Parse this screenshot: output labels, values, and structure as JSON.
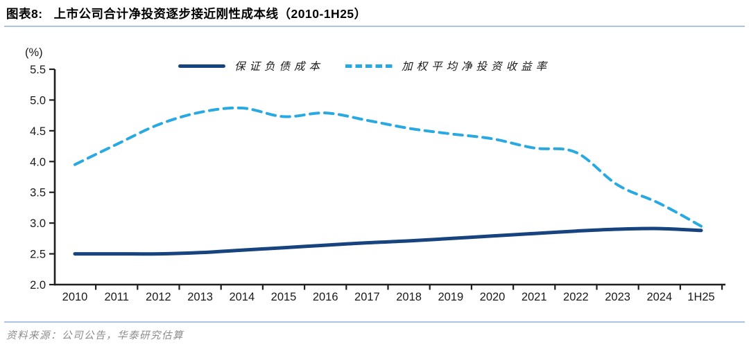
{
  "figure": {
    "label": "图表8:",
    "title": "上市公司合计净投资逐步接近刚性成本线（2010-1H25）",
    "source": "资料来源：公司公告，华泰研究估算"
  },
  "legend": {
    "items": [
      {
        "label": "保证负债成本",
        "style": "solid",
        "color": "#17437F"
      },
      {
        "label": "加权平均净投资收益率",
        "style": "dashed",
        "color": "#29A9E1"
      }
    ]
  },
  "colors": {
    "axis": "#1f1f1f",
    "tick_text": "#1a1a1a",
    "rule": "#a9c5e2",
    "source_text": "#8c8c8c"
  },
  "chart_data": {
    "type": "line",
    "title": "上市公司合计净投资逐步接近刚性成本线（2010-1H25）",
    "ylabel": "(%)",
    "xlabel": "",
    "ylim": [
      2.0,
      5.5
    ],
    "ytick_step": 0.5,
    "grid": false,
    "legend_position": "top-center",
    "categories": [
      "2010",
      "2011",
      "2012",
      "2013",
      "2014",
      "2015",
      "2016",
      "2017",
      "2018",
      "2019",
      "2020",
      "2021",
      "2022",
      "2023",
      "2024",
      "1H25"
    ],
    "series": [
      {
        "name": "保证负债成本",
        "style": "solid",
        "color": "#17437F",
        "values": [
          2.5,
          2.5,
          2.5,
          2.52,
          2.56,
          2.6,
          2.64,
          2.68,
          2.71,
          2.75,
          2.79,
          2.83,
          2.87,
          2.9,
          2.91,
          2.88
        ]
      },
      {
        "name": "加权平均净投资收益率",
        "style": "dashed",
        "color": "#29A9E1",
        "values": [
          3.95,
          4.28,
          4.6,
          4.8,
          4.87,
          4.73,
          4.79,
          4.67,
          4.54,
          4.45,
          4.37,
          4.22,
          4.15,
          3.62,
          3.32,
          2.95
        ]
      }
    ]
  }
}
